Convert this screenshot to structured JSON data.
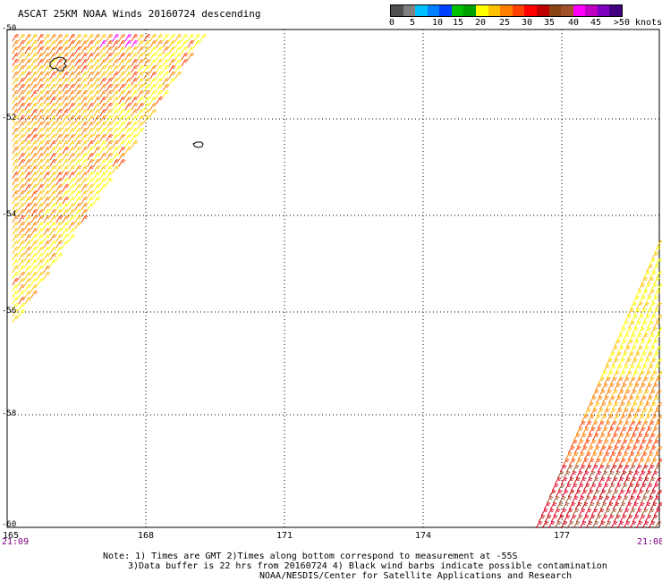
{
  "title": "ASCAT 25KM NOAA Winds 20160724 descending",
  "legend": {
    "colors": [
      "#505050",
      "#808080",
      "#00bfff",
      "#0080ff",
      "#0040ff",
      "#00c000",
      "#00a000",
      "#ffff00",
      "#ffc000",
      "#ff8000",
      "#ff4000",
      "#ff0000",
      "#c00000",
      "#8b4513",
      "#a0522d",
      "#ff00ff",
      "#c000c0",
      "#8000c0",
      "#400080"
    ],
    "labels": [
      "0",
      "5",
      "10",
      "15",
      "20",
      "25",
      "30",
      "35",
      "40",
      "45",
      ">50 knots"
    ]
  },
  "latitudes": [
    "-50",
    "-52",
    "-54",
    "-56",
    "-58",
    "-60"
  ],
  "longitudes": [
    "165",
    "168",
    "171",
    "174",
    "177"
  ],
  "time_left": "21:09",
  "time_right": "21:08",
  "notes": [
    "Note: 1) Times are GMT 2)Times along bottom correspond to measurement at -55S",
    "3)Data buffer is 22 hrs from 20160724 4) Black wind barbs indicate possible contamination",
    "NOAA/NESDIS/Center for Satellite Applications and Research"
  ]
}
